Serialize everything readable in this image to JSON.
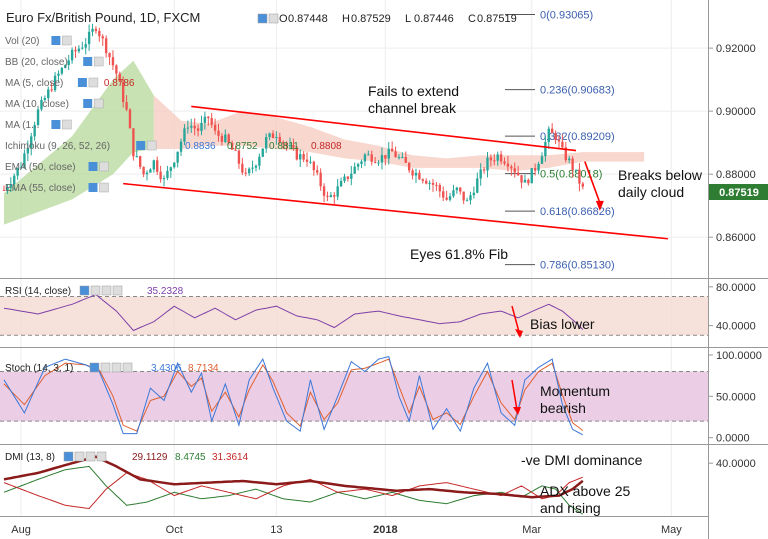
{
  "header": {
    "symbol": "Euro Fx/British Pound, 1D, FXCM",
    "ohlc": [
      {
        "label": "O",
        "value": "0.87448"
      },
      {
        "label": "H",
        "value": "0.87529"
      },
      {
        "label": "L",
        "value": "0.87446"
      },
      {
        "label": "C",
        "value": "0.87519"
      }
    ]
  },
  "indicators": [
    {
      "label": "Vol (20)"
    },
    {
      "label": "BB (20, close)"
    },
    {
      "label": "MA (5, close)",
      "value": "0.8786"
    },
    {
      "label": "MA (10, close)"
    },
    {
      "label": "MA (1..."
    },
    {
      "label": "Ichimoku (9, 26, 52, 26)",
      "values": [
        "0.8836",
        "0.8752",
        "0.8811",
        "0.8808"
      ]
    },
    {
      "label": "EMA (50, close)"
    },
    {
      "label": "EMA (55, close)"
    }
  ],
  "fib": [
    {
      "label": "0(0.93065)",
      "price": 0.93065
    },
    {
      "label": "0.236(0.90683)",
      "price": 0.90683
    },
    {
      "label": "0.382(0.89209)",
      "price": 0.89209
    },
    {
      "label": "0.5(0.88018)",
      "price": 0.88018
    },
    {
      "label": "0.618(0.86826)",
      "price": 0.86826
    },
    {
      "label": "0.786(0.85130)",
      "price": 0.8513
    }
  ],
  "annotations": {
    "channel": "Fails to extend\nchannel break",
    "cloud": "Breaks below\ndaily cloud",
    "fib": "Eyes 61.8% Fib",
    "rsi": "Bias lower",
    "stoch": "Momentum\nbearish",
    "dmi": "-ve DMI dominance",
    "adx": "ADX above 25\nand rising"
  },
  "last_price": "0.87519",
  "rsi": {
    "label": "RSI (14, close)",
    "value": "35.2328"
  },
  "stoch": {
    "label": "Stoch (14, 3, 1)",
    "values": [
      "3.4306",
      "8.7134"
    ]
  },
  "dmi": {
    "label": "DMI (13, 8)",
    "values": [
      "29.1129",
      "8.4745",
      "31.3614"
    ]
  },
  "colors": {
    "up_candle": "#26a69a",
    "down_candle": "#ef5350",
    "channel": "#ff0000",
    "cloud_bull": "#b5d89a",
    "cloud_bear": "#f4c9bd",
    "rsi": "#7e3fa8",
    "stoch_k": "#3c78d8",
    "stoch_d": "#e06030",
    "adx": "#8b1a1a",
    "plus_di": "#2e7d32",
    "minus_di": "#c62828",
    "badge": "#2e7d32"
  },
  "chart_data": [
    {
      "type": "candlestick",
      "name": "EUR/GBP daily",
      "y_axis_ticks": [
        "0.92000",
        "0.90000",
        "0.88000",
        "0.86000"
      ],
      "y_axis_values": [
        0.92,
        0.9,
        0.88,
        0.86
      ],
      "ylim": [
        0.848,
        0.934
      ],
      "x_axis_ticks": [
        "Aug",
        "Oct",
        "13",
        "2018",
        "Mar",
        "May"
      ],
      "x_tick_index": [
        5,
        50,
        80,
        112,
        155,
        196
      ],
      "n_bars": 206,
      "last_index": 170,
      "anchors": [
        [
          0,
          0.875
        ],
        [
          5,
          0.883
        ],
        [
          10,
          0.9
        ],
        [
          15,
          0.91
        ],
        [
          20,
          0.918
        ],
        [
          24,
          0.922
        ],
        [
          27,
          0.927
        ],
        [
          30,
          0.92
        ],
        [
          33,
          0.912
        ],
        [
          36,
          0.9
        ],
        [
          38,
          0.887
        ],
        [
          41,
          0.88
        ],
        [
          44,
          0.884
        ],
        [
          47,
          0.878
        ],
        [
          50,
          0.885
        ],
        [
          54,
          0.896
        ],
        [
          57,
          0.894
        ],
        [
          60,
          0.898
        ],
        [
          62,
          0.893
        ],
        [
          65,
          0.891
        ],
        [
          68,
          0.886
        ],
        [
          71,
          0.879
        ],
        [
          74,
          0.884
        ],
        [
          77,
          0.891
        ],
        [
          80,
          0.893
        ],
        [
          83,
          0.889
        ],
        [
          86,
          0.886
        ],
        [
          89,
          0.885
        ],
        [
          92,
          0.879
        ],
        [
          95,
          0.872
        ],
        [
          97,
          0.874
        ],
        [
          100,
          0.878
        ],
        [
          103,
          0.882
        ],
        [
          106,
          0.886
        ],
        [
          110,
          0.885
        ],
        [
          114,
          0.887
        ],
        [
          117,
          0.884
        ],
        [
          120,
          0.881
        ],
        [
          123,
          0.879
        ],
        [
          127,
          0.876
        ],
        [
          130,
          0.872
        ],
        [
          133,
          0.875
        ],
        [
          136,
          0.871
        ],
        [
          139,
          0.878
        ],
        [
          142,
          0.884
        ],
        [
          145,
          0.886
        ],
        [
          148,
          0.884
        ],
        [
          151,
          0.88
        ],
        [
          153,
          0.877
        ],
        [
          156,
          0.882
        ],
        [
          158,
          0.887
        ],
        [
          160,
          0.893
        ],
        [
          162,
          0.892
        ],
        [
          164,
          0.887
        ],
        [
          166,
          0.884
        ],
        [
          168,
          0.88
        ],
        [
          170,
          0.8752
        ]
      ],
      "channel_upper": [
        [
          55,
          0.9015
        ],
        [
          168,
          0.8875
        ]
      ],
      "channel_lower": [
        [
          35,
          0.877
        ],
        [
          195,
          0.8595
        ]
      ],
      "cloud_upper": [
        [
          0,
          0.874
        ],
        [
          20,
          0.892
        ],
        [
          32,
          0.91
        ],
        [
          38,
          0.916
        ],
        [
          44,
          0.905
        ],
        [
          52,
          0.897
        ],
        [
          60,
          0.896
        ],
        [
          70,
          0.9
        ],
        [
          80,
          0.898
        ],
        [
          90,
          0.895
        ],
        [
          100,
          0.891
        ],
        [
          110,
          0.889
        ],
        [
          120,
          0.886
        ],
        [
          130,
          0.885
        ],
        [
          140,
          0.886
        ],
        [
          150,
          0.886
        ],
        [
          160,
          0.886
        ],
        [
          170,
          0.887
        ],
        [
          180,
          0.887
        ],
        [
          188,
          0.887
        ]
      ],
      "cloud_lower": [
        [
          0,
          0.864
        ],
        [
          20,
          0.872
        ],
        [
          32,
          0.88
        ],
        [
          38,
          0.887
        ],
        [
          44,
          0.888
        ],
        [
          52,
          0.888
        ],
        [
          60,
          0.889
        ],
        [
          70,
          0.889
        ],
        [
          80,
          0.888
        ],
        [
          90,
          0.887
        ],
        [
          100,
          0.885
        ],
        [
          110,
          0.884
        ],
        [
          120,
          0.882
        ],
        [
          130,
          0.882
        ],
        [
          140,
          0.882
        ],
        [
          150,
          0.881
        ],
        [
          160,
          0.882
        ],
        [
          170,
          0.884
        ],
        [
          180,
          0.884
        ],
        [
          188,
          0.884
        ]
      ]
    },
    {
      "type": "line",
      "name": "RSI (14, close)",
      "y_axis_ticks": [
        "80.0000",
        "40.0000"
      ],
      "y_axis_values": [
        80,
        40
      ],
      "ylim": [
        20,
        86
      ],
      "bands": [
        70,
        30
      ],
      "anchors": [
        [
          0,
          58
        ],
        [
          10,
          52
        ],
        [
          20,
          62
        ],
        [
          27,
          72
        ],
        [
          33,
          55
        ],
        [
          38,
          35
        ],
        [
          44,
          44
        ],
        [
          50,
          60
        ],
        [
          56,
          48
        ],
        [
          62,
          58
        ],
        [
          68,
          46
        ],
        [
          74,
          56
        ],
        [
          80,
          60
        ],
        [
          86,
          50
        ],
        [
          92,
          46
        ],
        [
          97,
          38
        ],
        [
          103,
          52
        ],
        [
          110,
          55
        ],
        [
          116,
          50
        ],
        [
          122,
          46
        ],
        [
          128,
          42
        ],
        [
          134,
          44
        ],
        [
          140,
          52
        ],
        [
          146,
          55
        ],
        [
          151,
          48
        ],
        [
          156,
          56
        ],
        [
          160,
          62
        ],
        [
          164,
          55
        ],
        [
          168,
          43
        ],
        [
          170,
          36
        ]
      ],
      "last": 35.23
    },
    {
      "type": "line",
      "name": "Stoch (14, 3, 1)",
      "y_axis_ticks": [
        "100.0000",
        "50.0000",
        "0.0000"
      ],
      "y_axis_values": [
        100,
        50,
        0
      ],
      "ylim": [
        -4,
        106
      ],
      "bands": [
        80,
        20
      ],
      "k_anchors": [
        [
          0,
          70
        ],
        [
          6,
          30
        ],
        [
          12,
          85
        ],
        [
          18,
          95
        ],
        [
          24,
          88
        ],
        [
          28,
          80
        ],
        [
          32,
          40
        ],
        [
          35,
          5
        ],
        [
          39,
          5
        ],
        [
          43,
          60
        ],
        [
          47,
          45
        ],
        [
          51,
          90
        ],
        [
          55,
          55
        ],
        [
          58,
          78
        ],
        [
          61,
          20
        ],
        [
          65,
          65
        ],
        [
          69,
          15
        ],
        [
          72,
          70
        ],
        [
          76,
          95
        ],
        [
          79,
          60
        ],
        [
          83,
          20
        ],
        [
          87,
          8
        ],
        [
          90,
          70
        ],
        [
          94,
          10
        ],
        [
          98,
          50
        ],
        [
          102,
          92
        ],
        [
          106,
          80
        ],
        [
          110,
          95
        ],
        [
          113,
          98
        ],
        [
          116,
          50
        ],
        [
          119,
          20
        ],
        [
          122,
          75
        ],
        [
          126,
          10
        ],
        [
          130,
          35
        ],
        [
          134,
          8
        ],
        [
          138,
          60
        ],
        [
          142,
          90
        ],
        [
          146,
          30
        ],
        [
          150,
          15
        ],
        [
          153,
          70
        ],
        [
          157,
          85
        ],
        [
          161,
          95
        ],
        [
          164,
          40
        ],
        [
          167,
          10
        ],
        [
          170,
          3.43
        ]
      ],
      "d_anchors": [
        [
          0,
          65
        ],
        [
          6,
          40
        ],
        [
          12,
          75
        ],
        [
          18,
          90
        ],
        [
          24,
          88
        ],
        [
          28,
          82
        ],
        [
          32,
          50
        ],
        [
          35,
          15
        ],
        [
          39,
          8
        ],
        [
          43,
          45
        ],
        [
          47,
          50
        ],
        [
          51,
          80
        ],
        [
          55,
          62
        ],
        [
          58,
          72
        ],
        [
          61,
          32
        ],
        [
          65,
          55
        ],
        [
          69,
          25
        ],
        [
          72,
          58
        ],
        [
          76,
          88
        ],
        [
          79,
          68
        ],
        [
          83,
          30
        ],
        [
          87,
          14
        ],
        [
          90,
          55
        ],
        [
          94,
          22
        ],
        [
          98,
          42
        ],
        [
          102,
          82
        ],
        [
          106,
          84
        ],
        [
          110,
          90
        ],
        [
          113,
          95
        ],
        [
          116,
          62
        ],
        [
          119,
          30
        ],
        [
          122,
          62
        ],
        [
          126,
          22
        ],
        [
          130,
          30
        ],
        [
          134,
          16
        ],
        [
          138,
          50
        ],
        [
          142,
          80
        ],
        [
          146,
          42
        ],
        [
          150,
          22
        ],
        [
          153,
          58
        ],
        [
          157,
          80
        ],
        [
          161,
          90
        ],
        [
          164,
          52
        ],
        [
          167,
          18
        ],
        [
          170,
          8.71
        ]
      ]
    },
    {
      "type": "line",
      "name": "DMI (13, 8)",
      "y_axis_ticks": [
        "40.0000"
      ],
      "y_axis_values": [
        40
      ],
      "ylim": [
        8,
        50
      ],
      "adx": [
        [
          0,
          30
        ],
        [
          10,
          34
        ],
        [
          20,
          40
        ],
        [
          27,
          44
        ],
        [
          33,
          38
        ],
        [
          40,
          30
        ],
        [
          50,
          27
        ],
        [
          60,
          28
        ],
        [
          70,
          29
        ],
        [
          80,
          27
        ],
        [
          90,
          29
        ],
        [
          100,
          26
        ],
        [
          110,
          24
        ],
        [
          115,
          23
        ],
        [
          125,
          24
        ],
        [
          135,
          22
        ],
        [
          145,
          21
        ],
        [
          155,
          19
        ],
        [
          163,
          20
        ],
        [
          167,
          24
        ],
        [
          170,
          29.11
        ]
      ],
      "plus_di": [
        [
          0,
          22
        ],
        [
          10,
          30
        ],
        [
          18,
          36
        ],
        [
          25,
          38
        ],
        [
          30,
          26
        ],
        [
          36,
          14
        ],
        [
          42,
          16
        ],
        [
          50,
          22
        ],
        [
          58,
          18
        ],
        [
          66,
          20
        ],
        [
          74,
          24
        ],
        [
          82,
          18
        ],
        [
          90,
          16
        ],
        [
          98,
          22
        ],
        [
          106,
          18
        ],
        [
          114,
          22
        ],
        [
          122,
          17
        ],
        [
          130,
          15
        ],
        [
          138,
          20
        ],
        [
          146,
          22
        ],
        [
          152,
          19
        ],
        [
          158,
          26
        ],
        [
          162,
          24
        ],
        [
          166,
          14
        ],
        [
          170,
          8.47
        ]
      ],
      "minus_di": [
        [
          0,
          28
        ],
        [
          10,
          20
        ],
        [
          18,
          14
        ],
        [
          25,
          12
        ],
        [
          30,
          24
        ],
        [
          36,
          34
        ],
        [
          42,
          30
        ],
        [
          50,
          20
        ],
        [
          58,
          26
        ],
        [
          66,
          22
        ],
        [
          74,
          18
        ],
        [
          82,
          26
        ],
        [
          90,
          30
        ],
        [
          98,
          22
        ],
        [
          106,
          24
        ],
        [
          114,
          20
        ],
        [
          122,
          26
        ],
        [
          130,
          28
        ],
        [
          138,
          24
        ],
        [
          146,
          20
        ],
        [
          152,
          26
        ],
        [
          158,
          18
        ],
        [
          162,
          20
        ],
        [
          166,
          28
        ],
        [
          170,
          31.36
        ]
      ]
    }
  ]
}
